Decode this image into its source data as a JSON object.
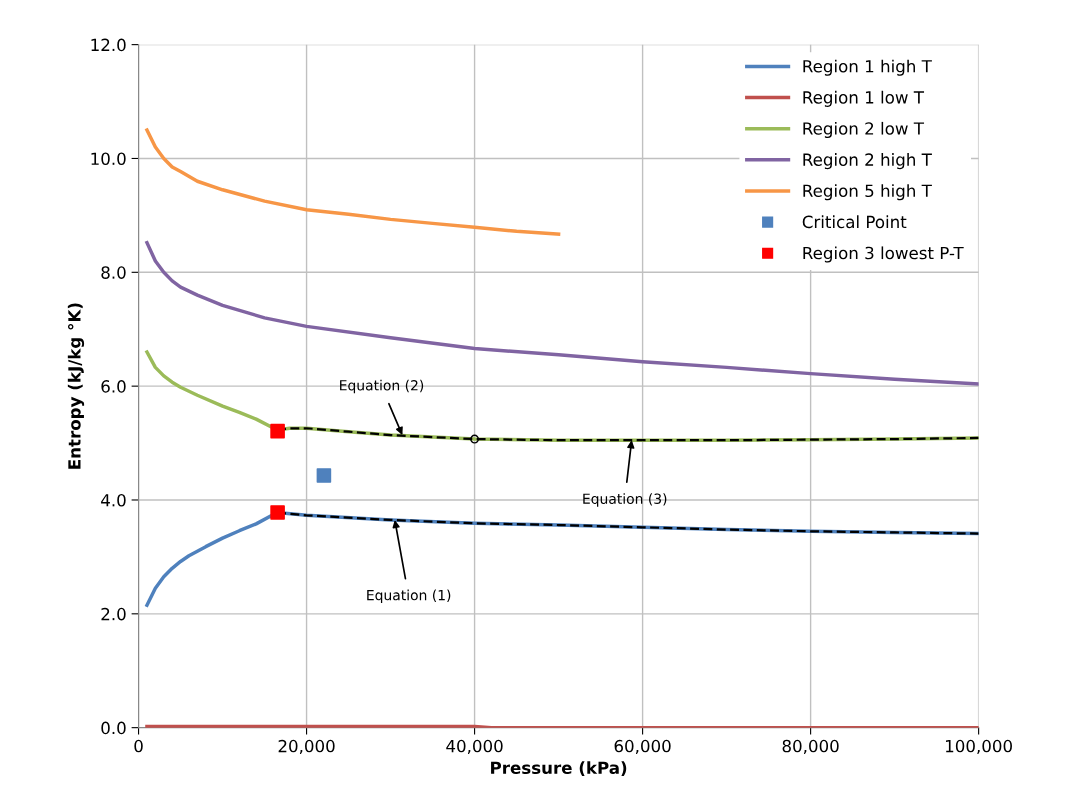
{
  "chart_data": {
    "type": "line",
    "xlabel": "Pressure (kPa)",
    "ylabel": "Entropy (kJ/kg °K)",
    "xlim": [
      0,
      100000
    ],
    "ylim": [
      0,
      12
    ],
    "xticks": [
      {
        "value": 0,
        "label": "0"
      },
      {
        "value": 20000,
        "label": "20,000"
      },
      {
        "value": 40000,
        "label": "40,000"
      },
      {
        "value": 60000,
        "label": "60,000"
      },
      {
        "value": 80000,
        "label": "80,000"
      },
      {
        "value": 100000,
        "label": "100,000"
      }
    ],
    "yticks": [
      {
        "value": 0,
        "label": "0.0"
      },
      {
        "value": 2,
        "label": "2.0"
      },
      {
        "value": 4,
        "label": "4.0"
      },
      {
        "value": 6,
        "label": "6.0"
      },
      {
        "value": 8,
        "label": "8.0"
      },
      {
        "value": 10,
        "label": "10.0"
      },
      {
        "value": 12,
        "label": "12.0"
      }
    ],
    "grid": true,
    "legend": "top right",
    "marker": "none",
    "line_style": "solid",
    "series": [
      {
        "name": "Region 1 high T",
        "color": "#4f81bd",
        "x": [
          1000,
          2000,
          3000,
          4000,
          5000,
          6000,
          7000,
          8000,
          10000,
          12000,
          14000,
          16500,
          20000,
          30000,
          40000,
          50000,
          60000,
          70000,
          80000,
          90000,
          100000
        ],
        "values": [
          2.15,
          2.45,
          2.65,
          2.8,
          2.92,
          3.02,
          3.1,
          3.18,
          3.33,
          3.46,
          3.58,
          3.78,
          3.73,
          3.65,
          3.59,
          3.56,
          3.52,
          3.48,
          3.45,
          3.43,
          3.41
        ]
      },
      {
        "name": "Region 1 low T",
        "color": "#c0504d",
        "x": [
          1000,
          40000,
          42000,
          100000
        ],
        "values": [
          0.02,
          0.02,
          0.0,
          0.0
        ]
      },
      {
        "name": "Region 2 low T",
        "color": "#9bbb59",
        "x": [
          1000,
          2000,
          3000,
          4000,
          5000,
          7000,
          10000,
          12000,
          14000,
          16500,
          18000,
          20000,
          25000,
          30000,
          40000,
          50000,
          60000,
          70000,
          80000,
          90000,
          100000
        ],
        "values": [
          6.6,
          6.33,
          6.18,
          6.07,
          5.98,
          5.84,
          5.65,
          5.54,
          5.42,
          5.23,
          5.26,
          5.26,
          5.2,
          5.14,
          5.07,
          5.05,
          5.05,
          5.05,
          5.06,
          5.07,
          5.09
        ]
      },
      {
        "name": "Region 2 high T",
        "color": "#8064a2",
        "x": [
          1000,
          2000,
          3000,
          4000,
          5000,
          7000,
          10000,
          15000,
          20000,
          30000,
          40000,
          50000,
          60000,
          70000,
          80000,
          90000,
          100000
        ],
        "values": [
          8.52,
          8.2,
          8.0,
          7.85,
          7.74,
          7.6,
          7.42,
          7.2,
          7.05,
          6.85,
          6.66,
          6.55,
          6.43,
          6.33,
          6.22,
          6.12,
          6.04
        ]
      },
      {
        "name": "Region 5 high T",
        "color": "#f79646",
        "x": [
          1000,
          2000,
          3000,
          4000,
          5000,
          7000,
          10000,
          15000,
          20000,
          25000,
          30000,
          35000,
          40000,
          45000,
          50000
        ],
        "values": [
          10.5,
          10.2,
          10.0,
          9.85,
          9.77,
          9.6,
          9.45,
          9.25,
          9.1,
          9.02,
          8.93,
          8.86,
          8.79,
          8.72,
          8.67
        ]
      },
      {
        "name": "Critical Point",
        "type": "scatter",
        "marker": "square",
        "color": "#4f81bd",
        "x": [
          22064
        ],
        "values": [
          4.43
        ]
      },
      {
        "name": "Region 3 lowest P-T",
        "type": "scatter",
        "marker": "square",
        "color": "#ff0000",
        "x": [
          16550,
          16550
        ],
        "values": [
          5.21,
          3.78
        ]
      },
      {
        "color": "#000000",
        "line_style": "dashed",
        "x": [
          16500,
          20000,
          30000,
          40000,
          50000,
          60000,
          70000,
          80000,
          90000,
          100000
        ],
        "values": [
          3.78,
          3.73,
          3.65,
          3.59,
          3.56,
          3.52,
          3.48,
          3.45,
          3.43,
          3.41
        ]
      },
      {
        "color": "#000000",
        "line_style": "dashed",
        "x": [
          16500,
          18000,
          20000,
          25000,
          30000,
          40000,
          50000,
          60000,
          70000,
          80000,
          90000,
          100000
        ],
        "values": [
          5.23,
          5.26,
          5.26,
          5.2,
          5.14,
          5.07,
          5.05,
          5.05,
          5.05,
          5.06,
          5.07,
          5.09
        ]
      },
      {
        "type": "scatter",
        "marker": "circle",
        "color": "#000000",
        "x": [
          40000
        ],
        "values": [
          5.07
        ]
      }
    ],
    "annotations": [
      {
        "text": "Equation (2)",
        "x": 31400,
        "y": 5.14
      },
      {
        "text": "Equation (1)",
        "x": 30500,
        "y": 3.65
      },
      {
        "text": "Equation (3)",
        "x": 58700,
        "y": 5.05
      }
    ]
  }
}
